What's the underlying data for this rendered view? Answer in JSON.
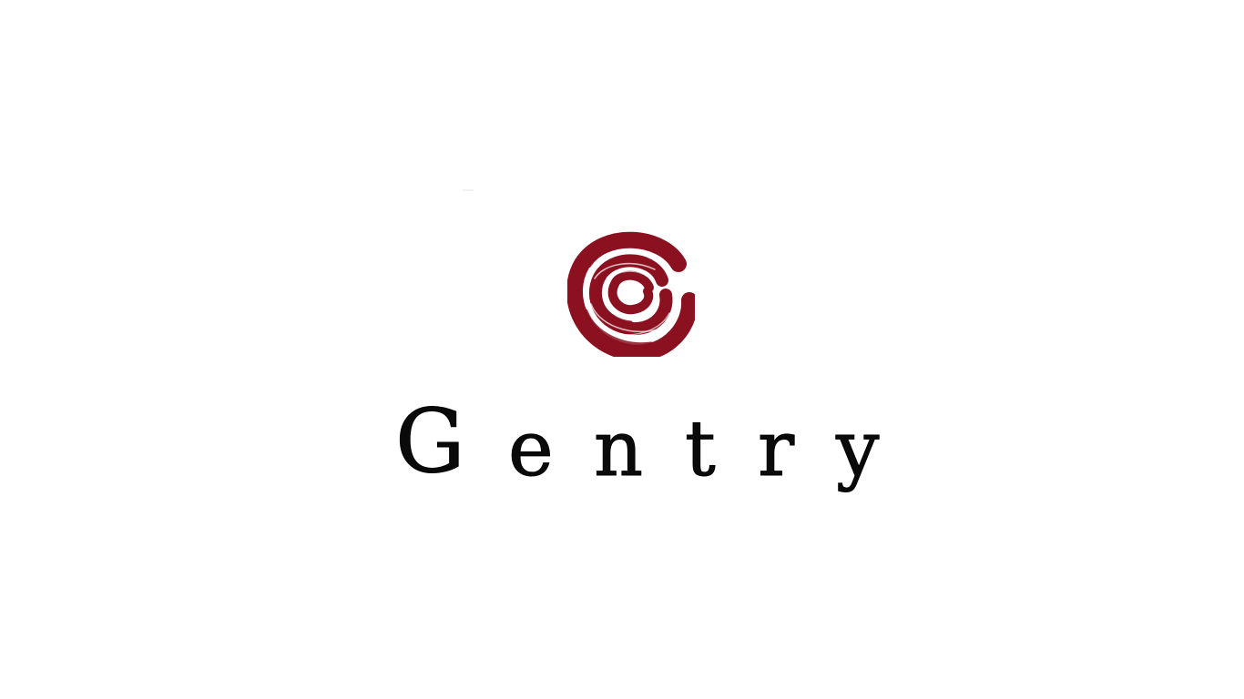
{
  "brand": {
    "name": "Gentry",
    "letters": [
      "G",
      "e",
      "n",
      "t",
      "r",
      "y"
    ],
    "logo_icon": "ink-swirl-circle-icon",
    "accent_color": "#8b1020"
  }
}
